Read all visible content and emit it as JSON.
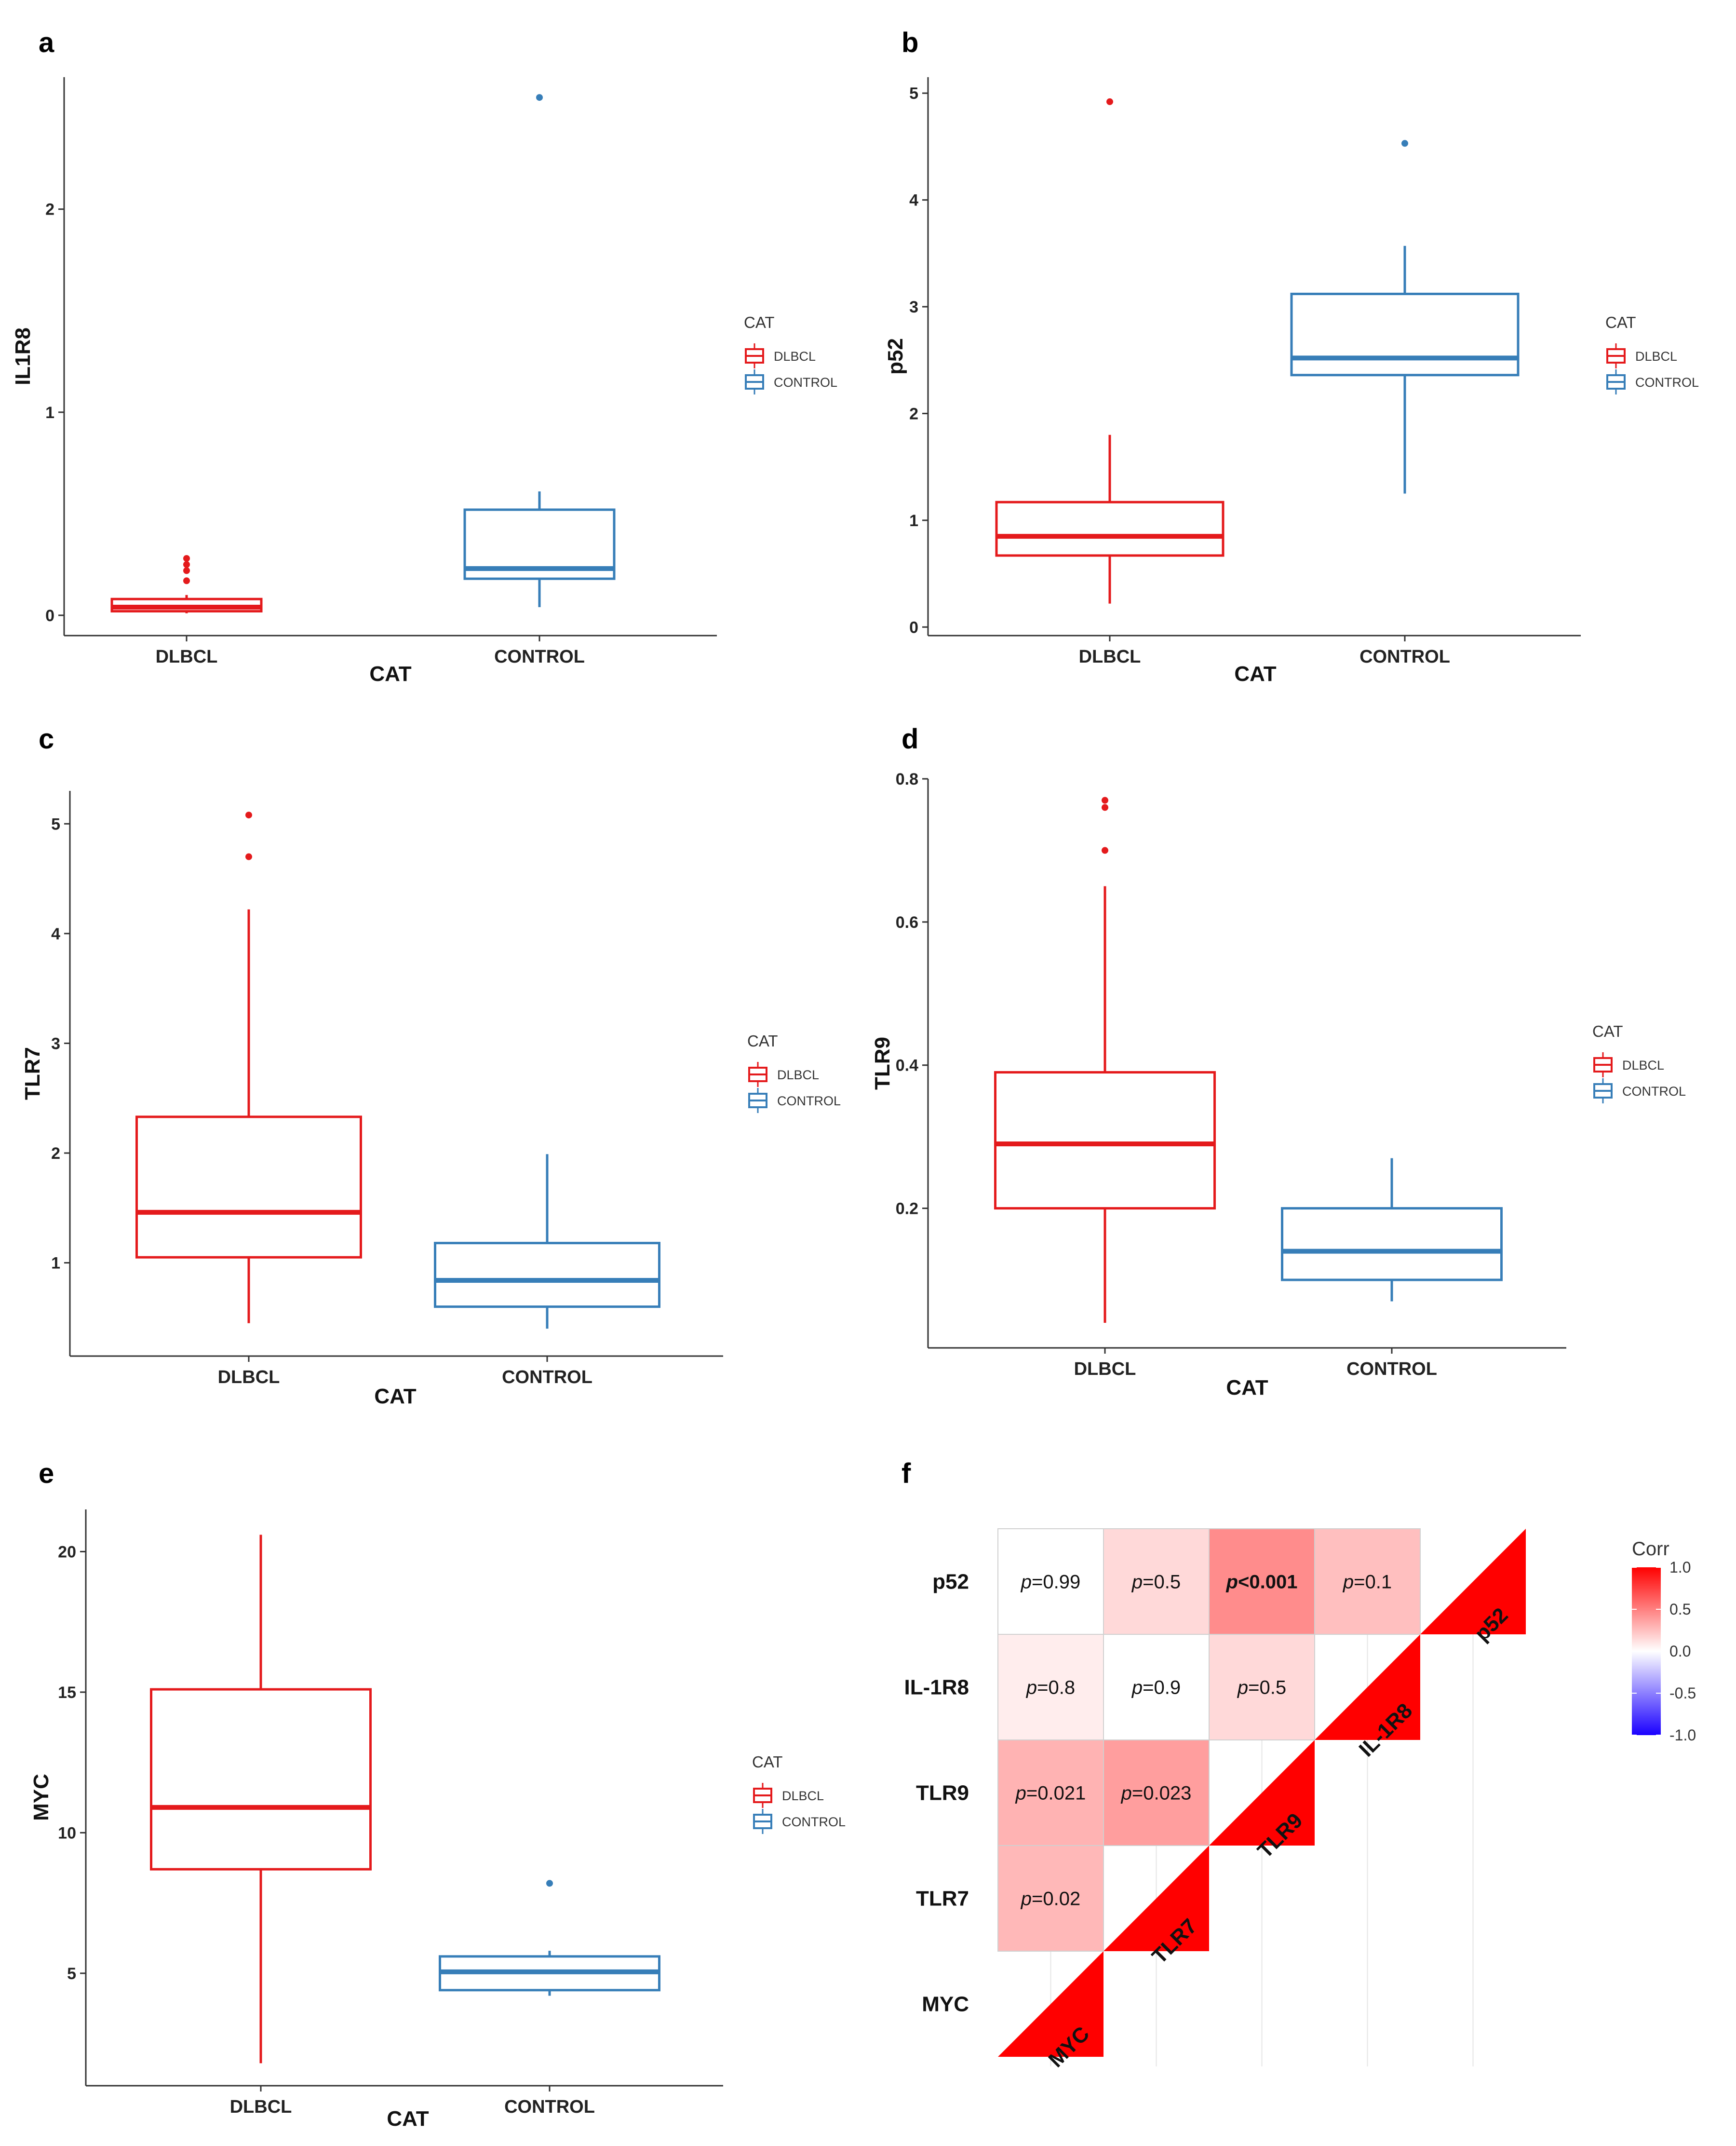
{
  "chart_data": [
    {
      "panel": "a",
      "type": "box",
      "xlabel": "CAT",
      "ylabel": "IL1R8",
      "categories": [
        "DLBCL",
        "CONTROL"
      ],
      "ylim": [
        -0.1,
        2.65
      ],
      "yticks": [
        "0",
        "1",
        "2"
      ],
      "ytick_values": [
        0,
        1,
        2
      ],
      "boxes": [
        {
          "name": "DLBCL",
          "color": "#e41a1c",
          "whisker_low": 0.01,
          "q1": 0.02,
          "median": 0.04,
          "q3": 0.08,
          "whisker_high": 0.1,
          "outliers": [
            0.17,
            0.22,
            0.25,
            0.28
          ]
        },
        {
          "name": "CONTROL",
          "color": "#377eb8",
          "whisker_low": 0.04,
          "q1": 0.18,
          "median": 0.23,
          "q3": 0.52,
          "whisker_high": 0.61,
          "outliers": [
            2.55
          ]
        }
      ],
      "legend": {
        "title": "CAT",
        "entries": [
          "DLBCL",
          "CONTROL"
        ]
      }
    },
    {
      "panel": "b",
      "type": "box",
      "xlabel": "CAT",
      "ylabel": "p52",
      "categories": [
        "DLBCL",
        "CONTROL"
      ],
      "ylim": [
        -0.08,
        5.15
      ],
      "yticks": [
        "0",
        "1",
        "2",
        "3",
        "4",
        "5"
      ],
      "ytick_values": [
        0,
        1,
        2,
        3,
        4,
        5
      ],
      "boxes": [
        {
          "name": "DLBCL",
          "color": "#e41a1c",
          "whisker_low": 0.22,
          "q1": 0.67,
          "median": 0.85,
          "q3": 1.17,
          "whisker_high": 1.8,
          "outliers": [
            4.92
          ]
        },
        {
          "name": "CONTROL",
          "color": "#377eb8",
          "whisker_low": 1.25,
          "q1": 2.36,
          "median": 2.52,
          "q3": 3.12,
          "whisker_high": 3.57,
          "outliers": [
            4.53
          ]
        }
      ],
      "legend": {
        "title": "CAT",
        "entries": [
          "DLBCL",
          "CONTROL"
        ]
      }
    },
    {
      "panel": "c",
      "type": "box",
      "xlabel": "CAT",
      "ylabel": "TLR7",
      "categories": [
        "DLBCL",
        "CONTROL"
      ],
      "ylim": [
        0.15,
        5.3
      ],
      "yticks": [
        "1",
        "2",
        "3",
        "4",
        "5"
      ],
      "ytick_values": [
        1,
        2,
        3,
        4,
        5
      ],
      "boxes": [
        {
          "name": "DLBCL",
          "color": "#e41a1c",
          "whisker_low": 0.45,
          "q1": 1.05,
          "median": 1.46,
          "q3": 2.33,
          "whisker_high": 4.22,
          "outliers": [
            4.7,
            5.08
          ]
        },
        {
          "name": "CONTROL",
          "color": "#377eb8",
          "whisker_low": 0.4,
          "q1": 0.6,
          "median": 0.84,
          "q3": 1.18,
          "whisker_high": 1.99,
          "outliers": []
        }
      ],
      "legend": {
        "title": "CAT",
        "entries": [
          "DLBCL",
          "CONTROL"
        ]
      }
    },
    {
      "panel": "d",
      "type": "box",
      "xlabel": "CAT",
      "ylabel": "TLR9",
      "categories": [
        "DLBCL",
        "CONTROL"
      ],
      "ylim": [
        0.005,
        0.8
      ],
      "yticks": [
        "0.2",
        "0.4",
        "0.6",
        "0.8"
      ],
      "ytick_values": [
        0.2,
        0.4,
        0.6,
        0.8
      ],
      "boxes": [
        {
          "name": "DLBCL",
          "color": "#e41a1c",
          "whisker_low": 0.04,
          "q1": 0.2,
          "median": 0.29,
          "q3": 0.39,
          "whisker_high": 0.65,
          "outliers": [
            0.7,
            0.76,
            0.77
          ]
        },
        {
          "name": "CONTROL",
          "color": "#377eb8",
          "whisker_low": 0.07,
          "q1": 0.1,
          "median": 0.14,
          "q3": 0.2,
          "whisker_high": 0.27,
          "outliers": []
        }
      ],
      "legend": {
        "title": "CAT",
        "entries": [
          "DLBCL",
          "CONTROL"
        ]
      }
    },
    {
      "panel": "e",
      "type": "box",
      "xlabel": "CAT",
      "ylabel": "MYC",
      "categories": [
        "DLBCL",
        "CONTROL"
      ],
      "ylim": [
        1.0,
        21.5
      ],
      "yticks": [
        "5",
        "10",
        "15",
        "20"
      ],
      "ytick_values": [
        5,
        10,
        15,
        20
      ],
      "boxes": [
        {
          "name": "DLBCL",
          "color": "#e41a1c",
          "whisker_low": 1.8,
          "q1": 8.7,
          "median": 10.9,
          "q3": 15.1,
          "whisker_high": 20.6,
          "outliers": []
        },
        {
          "name": "CONTROL",
          "color": "#377eb8",
          "whisker_low": 4.2,
          "q1": 4.4,
          "median": 5.05,
          "q3": 5.6,
          "whisker_high": 5.8,
          "outliers": [
            8.2
          ]
        }
      ],
      "legend": {
        "title": "CAT",
        "entries": [
          "DLBCL",
          "CONTROL"
        ]
      }
    },
    {
      "panel": "f",
      "type": "heatmap",
      "variables": [
        "MYC",
        "TLR7",
        "TLR9",
        "IL-1R8",
        "p52"
      ],
      "rows_top_to_bottom": [
        "p52",
        "IL-1R8",
        "TLR9",
        "TLR7",
        "MYC"
      ],
      "cells": [
        {
          "row": "p52",
          "col": "MYC",
          "label": "=0.99",
          "corr": 0.0,
          "bold": false
        },
        {
          "row": "p52",
          "col": "TLR7",
          "label": "=0.5",
          "corr": 0.15,
          "bold": false
        },
        {
          "row": "p52",
          "col": "TLR9",
          "label": "<0.001",
          "corr": 0.45,
          "bold": true
        },
        {
          "row": "p52",
          "col": "IL-1R8",
          "label": "=0.1",
          "corr": 0.25,
          "bold": false
        },
        {
          "row": "IL-1R8",
          "col": "MYC",
          "label": "=0.8",
          "corr": 0.07,
          "bold": false
        },
        {
          "row": "IL-1R8",
          "col": "TLR7",
          "label": "=0.9",
          "corr": 0.0,
          "bold": false
        },
        {
          "row": "IL-1R8",
          "col": "TLR9",
          "label": "=0.5",
          "corr": 0.15,
          "bold": false
        },
        {
          "row": "TLR9",
          "col": "MYC",
          "label": "=0.021",
          "corr": 0.3,
          "bold": false
        },
        {
          "row": "TLR9",
          "col": "TLR7",
          "label": "=0.023",
          "corr": 0.38,
          "bold": false
        },
        {
          "row": "TLR7",
          "col": "MYC",
          "label": "=0.02",
          "corr": 0.28,
          "bold": false
        }
      ],
      "p_symbol": "p",
      "diagonal": [
        "MYC",
        "TLR7",
        "TLR9",
        "IL-1R8",
        "p52"
      ],
      "legend": {
        "title": "Corr",
        "ticks": [
          "1.0",
          "0.5",
          "0.0",
          "-0.5",
          "-1.0"
        ],
        "tick_values": [
          1.0,
          0.5,
          0.0,
          -0.5,
          -1.0
        ]
      },
      "colors": {
        "low": "#1a00ff",
        "mid": "#ffffff",
        "high": "#ff0000"
      }
    }
  ]
}
